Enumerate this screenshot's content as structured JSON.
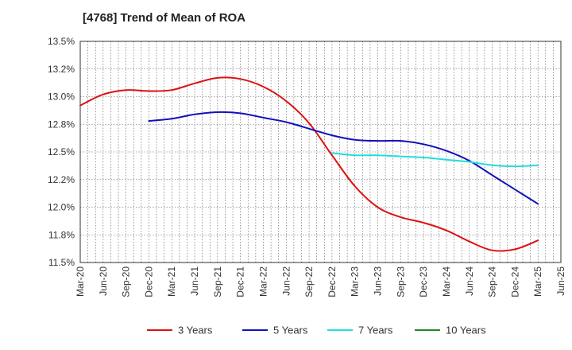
{
  "chart_data": {
    "type": "line",
    "title": "[4768]  Trend of Mean of ROA",
    "xlabel": "",
    "ylabel": "",
    "x_ticks": [
      "Mar-20",
      "Jun-20",
      "Sep-20",
      "Dec-20",
      "Mar-21",
      "Jun-21",
      "Sep-21",
      "Dec-21",
      "Mar-22",
      "Jun-22",
      "Sep-22",
      "Dec-22",
      "Mar-23",
      "Jun-23",
      "Sep-23",
      "Dec-23",
      "Mar-24",
      "Jun-24",
      "Sep-24",
      "Dec-24",
      "Mar-25",
      "Jun-25"
    ],
    "y_ticks": [
      "11.5%",
      "11.8%",
      "12.0%",
      "12.2%",
      "12.5%",
      "12.8%",
      "13.0%",
      "13.2%",
      "13.5%"
    ],
    "ylim": [
      11.5,
      13.5
    ],
    "grid": true,
    "legend_position": "bottom",
    "series": [
      {
        "name": "3 Years",
        "color": "#dd1111",
        "x": [
          "Mar-20",
          "Jun-20",
          "Sep-20",
          "Dec-20",
          "Mar-21",
          "Jun-21",
          "Sep-21",
          "Dec-21",
          "Mar-22",
          "Jun-22",
          "Sep-22",
          "Dec-22",
          "Mar-23",
          "Jun-23",
          "Sep-23",
          "Dec-23",
          "Mar-24",
          "Jun-24",
          "Sep-24",
          "Dec-24",
          "Mar-25"
        ],
        "values": [
          12.92,
          13.02,
          13.06,
          13.05,
          13.06,
          13.12,
          13.17,
          13.16,
          13.09,
          12.96,
          12.76,
          12.47,
          12.19,
          12.0,
          11.91,
          11.86,
          11.79,
          11.69,
          11.61,
          11.62,
          11.7
        ]
      },
      {
        "name": "5 Years",
        "color": "#1111bb",
        "x": [
          "Dec-20",
          "Mar-21",
          "Jun-21",
          "Sep-21",
          "Dec-21",
          "Mar-22",
          "Jun-22",
          "Sep-22",
          "Dec-22",
          "Mar-23",
          "Jun-23",
          "Sep-23",
          "Dec-23",
          "Mar-24",
          "Jun-24",
          "Sep-24",
          "Dec-24",
          "Mar-25"
        ],
        "values": [
          12.78,
          12.8,
          12.84,
          12.86,
          12.85,
          12.81,
          12.77,
          12.71,
          12.65,
          12.61,
          12.6,
          12.6,
          12.57,
          12.51,
          12.42,
          12.29,
          12.16,
          12.03
        ]
      },
      {
        "name": "7 Years",
        "color": "#22dddd",
        "x": [
          "Dec-22",
          "Mar-23",
          "Jun-23",
          "Sep-23",
          "Dec-23",
          "Mar-24",
          "Jun-24",
          "Sep-24",
          "Dec-24",
          "Mar-25"
        ],
        "values": [
          12.49,
          12.47,
          12.47,
          12.46,
          12.45,
          12.43,
          12.41,
          12.38,
          12.37,
          12.38
        ]
      },
      {
        "name": "10 Years",
        "color": "#228822",
        "x": [],
        "values": []
      }
    ]
  }
}
